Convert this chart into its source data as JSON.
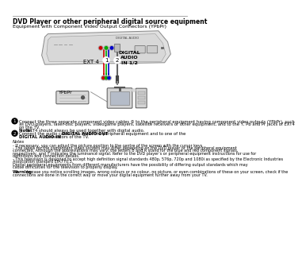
{
  "title": "DVD Player or other peripheral digital source equipment",
  "subtitle": "Equipment with Component Video Output Connectors (YPbPr)",
  "bg_color": "#ffffff",
  "text_color": "#000000",
  "section1_text_parts": [
    {
      "text": "Connect the three separate component video cables ",
      "bold": false
    },
    {
      "text": "1",
      "bold": true,
      "circle": true
    },
    {
      "text": " to the peripheral equipment having component video outputs (YPbPr), such as DVD-players, laser-disc players, videogame players, satellite receivers or other equipment, and to the ",
      "bold": false
    },
    {
      "text": "Y, Pb",
      "bold": true
    },
    {
      "text": " and ",
      "bold": false
    },
    {
      "text": "Pr",
      "bold": true
    },
    {
      "text": " jacks of ",
      "bold": false
    },
    {
      "text": "EXT4",
      "bold": true
    },
    {
      "text": " on the TV.",
      "bold": false
    }
  ],
  "section1_note": "Note: EXT4 should always be used together with digital audio.",
  "section2_text_pre": "Connect the audio cable ",
  "section2_text_bold1": "DIGITAL AUDIO OUT",
  "section2_text_mid": " of the peripheral equipment and to one of the ",
  "section2_text_bold2": "DIGITAL AUDIO IN",
  "section2_text_post": " connectors of the TV.",
  "notes_header": "Notes",
  "note1": "- If necessary, you can adjust the picture position to the centre of the screen with the cursor keys.",
  "note2": "- The labels for the component video sockets may differ depending on the DVD player or the peripheral equipment connected. Although the abbreviations may vary, the letters B and R stand for the blue and red component signals, respectively, and Y indicates the luminance signal. Refer to the DVD player’s or peripheral equipment instructions for use for definitions and connection details.",
  "note3": "- This television is designed to accept high definition signal standards 480p, 576p, 720p and 1080i as specified by the Electronic Industries Association standard EIA770.3.",
  "note4": "Digital peripheral equipments from different manufacturers have the possibility of differing output standards which may cause difficulties for the television to properly display.",
  "warning_label": "Warning:",
  "warning_text": "In case you notice scrolling images, wrong colours or no colour, no picture, or even combinations of these on your screen, check if the connections are done in the correct way or move your digital equipment further away from your TV.",
  "ext4_label": "EXT 4",
  "digital_audio_label": "DIGITAL\nAUDIO\nIN 1/2",
  "ypbpr_label": "YPbPr"
}
